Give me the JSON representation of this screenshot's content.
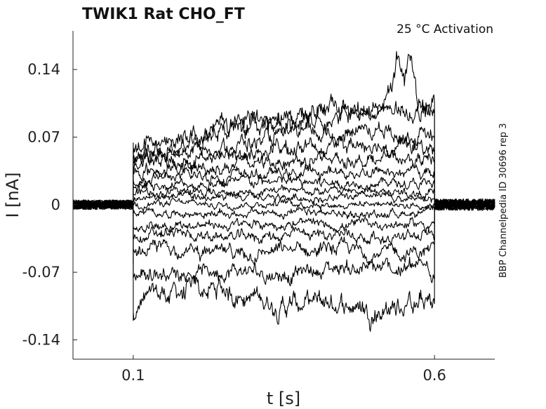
{
  "chart_data": {
    "type": "line",
    "title": "TWIK1  Rat  CHO_FT",
    "subtitle": "25 °C  Activation",
    "side_note": "BBP Channelpedia ID 30696 rep 3",
    "xlabel": "t [s]",
    "ylabel": "I [nA]",
    "xlim": [
      0.0,
      0.7
    ],
    "ylim": [
      -0.16,
      0.18
    ],
    "xticks": [
      0.1,
      0.6
    ],
    "xtick_labels": [
      "0.1",
      "0.6"
    ],
    "yticks": [
      0.14,
      0.07,
      0,
      -0.07,
      -0.14
    ],
    "ytick_labels": [
      "0.14",
      "0.07",
      "0",
      "-0.07",
      "-0.14"
    ],
    "grid": false,
    "legend": "none",
    "stimulus_window": [
      0.1,
      0.6
    ],
    "series": [
      {
        "x": [
          0.1,
          0.15,
          0.25,
          0.35,
          0.45,
          0.5,
          0.55,
          0.6
        ],
        "values": [
          -0.108,
          -0.092,
          -0.088,
          -0.104,
          -0.102,
          -0.11,
          -0.104,
          -0.102
        ]
      },
      {
        "x": [
          0.1,
          0.15,
          0.25,
          0.35,
          0.45,
          0.5,
          0.55,
          0.6
        ],
        "values": [
          -0.072,
          -0.07,
          -0.068,
          -0.072,
          -0.064,
          -0.068,
          -0.066,
          -0.066
        ]
      },
      {
        "x": [
          0.1,
          0.15,
          0.25,
          0.35,
          0.45,
          0.5,
          0.55,
          0.6
        ],
        "values": [
          -0.05,
          -0.044,
          -0.052,
          -0.048,
          -0.046,
          -0.05,
          -0.05,
          -0.048
        ]
      },
      {
        "x": [
          0.1,
          0.15,
          0.25,
          0.35,
          0.45,
          0.5,
          0.55,
          0.6
        ],
        "values": [
          -0.036,
          -0.03,
          -0.034,
          -0.032,
          -0.03,
          -0.034,
          -0.034,
          -0.032
        ]
      },
      {
        "x": [
          0.1,
          0.15,
          0.25,
          0.35,
          0.45,
          0.5,
          0.55,
          0.6
        ],
        "values": [
          -0.022,
          -0.02,
          -0.022,
          -0.02,
          -0.022,
          -0.02,
          -0.02,
          -0.02
        ]
      },
      {
        "x": [
          0.1,
          0.15,
          0.25,
          0.35,
          0.45,
          0.5,
          0.55,
          0.6
        ],
        "values": [
          -0.01,
          -0.008,
          -0.01,
          -0.008,
          -0.01,
          -0.01,
          -0.008,
          -0.008
        ]
      },
      {
        "x": [
          0.1,
          0.15,
          0.25,
          0.35,
          0.45,
          0.5,
          0.55,
          0.6
        ],
        "values": [
          0.0,
          0.002,
          0.0,
          0.002,
          0.0,
          0.002,
          0.0,
          0.0
        ]
      },
      {
        "x": [
          0.1,
          0.15,
          0.25,
          0.35,
          0.45,
          0.5,
          0.55,
          0.6
        ],
        "values": [
          0.006,
          0.008,
          0.006,
          0.008,
          0.006,
          0.008,
          0.006,
          0.006
        ]
      },
      {
        "x": [
          0.1,
          0.15,
          0.25,
          0.35,
          0.45,
          0.5,
          0.55,
          0.6
        ],
        "values": [
          0.012,
          0.014,
          0.012,
          0.014,
          0.014,
          0.014,
          0.012,
          0.012
        ]
      },
      {
        "x": [
          0.1,
          0.15,
          0.25,
          0.35,
          0.45,
          0.5,
          0.55,
          0.6
        ],
        "values": [
          0.02,
          0.02,
          0.022,
          0.024,
          0.022,
          0.024,
          0.022,
          0.02
        ]
      },
      {
        "x": [
          0.1,
          0.15,
          0.25,
          0.35,
          0.45,
          0.5,
          0.55,
          0.6
        ],
        "values": [
          0.028,
          0.028,
          0.03,
          0.032,
          0.034,
          0.034,
          0.034,
          0.032
        ]
      },
      {
        "x": [
          0.1,
          0.15,
          0.25,
          0.35,
          0.45,
          0.5,
          0.55,
          0.6
        ],
        "values": [
          0.034,
          0.036,
          0.04,
          0.046,
          0.048,
          0.048,
          0.046,
          0.046
        ]
      },
      {
        "x": [
          0.1,
          0.15,
          0.25,
          0.35,
          0.45,
          0.5,
          0.55,
          0.6
        ],
        "values": [
          0.04,
          0.044,
          0.05,
          0.058,
          0.062,
          0.064,
          0.06,
          0.058
        ]
      },
      {
        "x": [
          0.1,
          0.15,
          0.25,
          0.35,
          0.45,
          0.5,
          0.55,
          0.6
        ],
        "values": [
          0.046,
          0.052,
          0.06,
          0.07,
          0.074,
          0.078,
          0.072,
          0.068
        ]
      },
      {
        "x": [
          0.1,
          0.15,
          0.25,
          0.35,
          0.45,
          0.5,
          0.55,
          0.6
        ],
        "values": [
          0.05,
          0.064,
          0.078,
          0.088,
          0.094,
          0.096,
          0.1,
          0.092
        ]
      },
      {
        "x": [
          0.1,
          0.15,
          0.25,
          0.35,
          0.45,
          0.5,
          0.53,
          0.54,
          0.55,
          0.56,
          0.57,
          0.6
        ],
        "values": [
          0.054,
          0.066,
          0.08,
          0.092,
          0.1,
          0.1,
          0.115,
          0.155,
          0.12,
          0.155,
          0.11,
          0.1
        ]
      }
    ]
  }
}
